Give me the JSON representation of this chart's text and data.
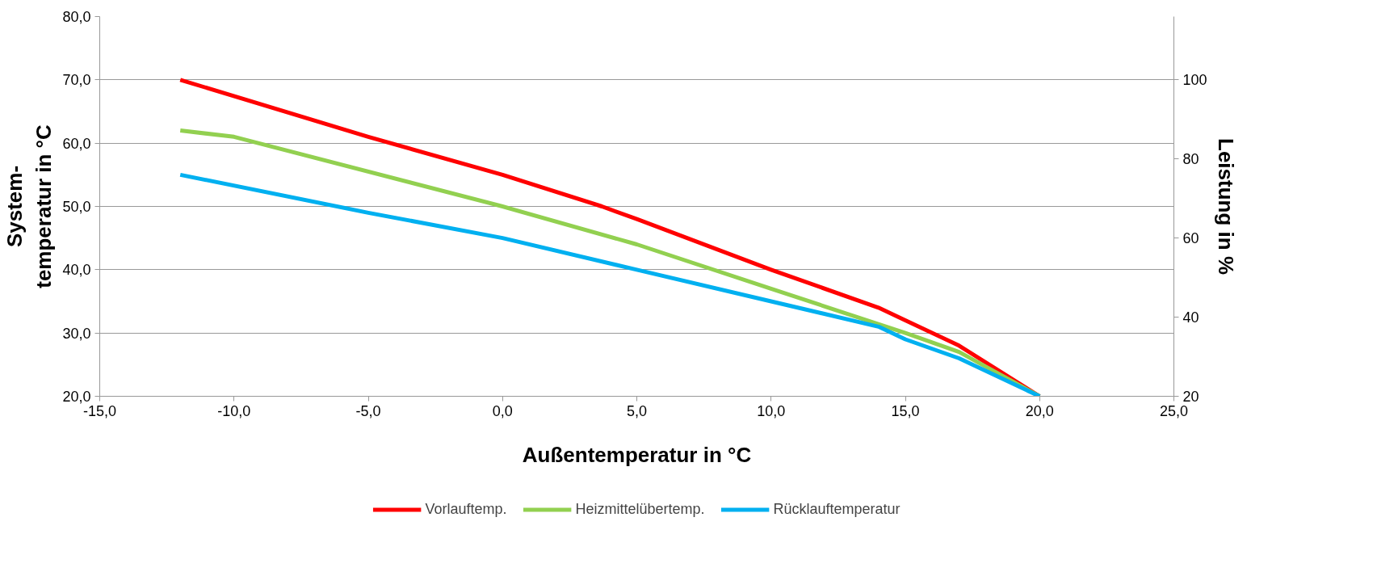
{
  "chart_data": {
    "type": "line",
    "xlabel": "Außentemperatur in °C",
    "ylabel": "System-\ntemperatur in °C",
    "y2label": "Leistung in %",
    "x": [
      -12,
      -5,
      0,
      3.7,
      5,
      10,
      14,
      15,
      17,
      20
    ],
    "series": [
      {
        "name": "Vorlauftemp.",
        "color": "#ff0000",
        "values": [
          70,
          61,
          55,
          50,
          48,
          40,
          34,
          32,
          28,
          20
        ]
      },
      {
        "name": "Heizmittelübertemp.",
        "color": "#92d050",
        "x": [
          -12,
          -10,
          0,
          5,
          10,
          15,
          17,
          20
        ],
        "values": [
          62,
          61,
          50,
          44,
          37,
          30,
          27,
          20
        ]
      },
      {
        "name": "Rücklauftemperatur",
        "color": "#00b0f0",
        "x": [
          -12,
          -5,
          0,
          5,
          10,
          14,
          15,
          17,
          20
        ],
        "values": [
          55,
          49,
          45,
          40,
          35,
          31,
          29,
          26,
          20
        ]
      }
    ],
    "xlim": [
      -15,
      25
    ],
    "xticks": [
      {
        "value": -15,
        "label": "-15,0"
      },
      {
        "value": -10,
        "label": "-10,0"
      },
      {
        "value": -5,
        "label": "-5,0"
      },
      {
        "value": 0,
        "label": "0,0"
      },
      {
        "value": 5,
        "label": "5,0"
      },
      {
        "value": 10,
        "label": "10,0"
      },
      {
        "value": 15,
        "label": "15,0"
      },
      {
        "value": 20,
        "label": "20,0"
      },
      {
        "value": 25,
        "label": "25,0"
      }
    ],
    "ylim": [
      20,
      80
    ],
    "yticks": [
      {
        "value": 20,
        "label": "20,0"
      },
      {
        "value": 30,
        "label": "30,0"
      },
      {
        "value": 40,
        "label": "40,0"
      },
      {
        "value": 50,
        "label": "50,0"
      },
      {
        "value": 60,
        "label": "60,0"
      },
      {
        "value": 70,
        "label": "70,0"
      },
      {
        "value": 80,
        "label": "80,0"
      }
    ],
    "y2lim": [
      20,
      116
    ],
    "y2ticks": [
      20,
      40,
      60,
      80,
      100
    ],
    "grid": "y",
    "legend": "bottom",
    "marker": "none",
    "line_style": "solid"
  }
}
